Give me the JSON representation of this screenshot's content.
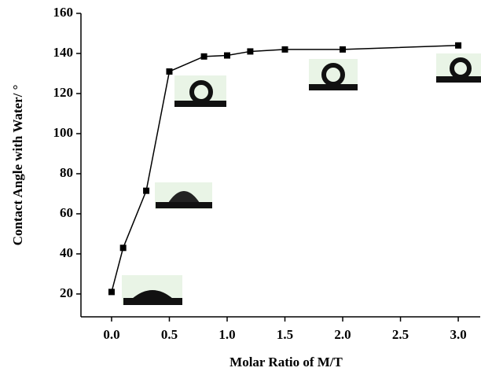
{
  "chart_data": {
    "type": "line",
    "x_label": "Molar Ratio of M/T",
    "y_label": "Contact Angle with Water/ °",
    "x": [
      0,
      0.1,
      0.3,
      0.5,
      0.8,
      1.0,
      1.2,
      1.5,
      2.0,
      3.0
    ],
    "values": [
      21,
      43,
      71.5,
      131,
      138.5,
      139,
      141,
      142,
      142,
      144
    ],
    "color": "#000000",
    "xlim": [
      -0.265,
      3.19
    ],
    "ylim": [
      8.6,
      160
    ],
    "xticks": [
      {
        "value": 0,
        "label": "0.0"
      },
      0.5,
      {
        "value": 1,
        "label": "1.0"
      },
      1.5,
      {
        "value": 2,
        "label": "2.0"
      },
      2.5,
      {
        "value": 3,
        "label": "3.0"
      }
    ],
    "yticks": [
      20,
      40,
      60,
      80,
      100,
      120,
      140,
      160
    ]
  }
}
